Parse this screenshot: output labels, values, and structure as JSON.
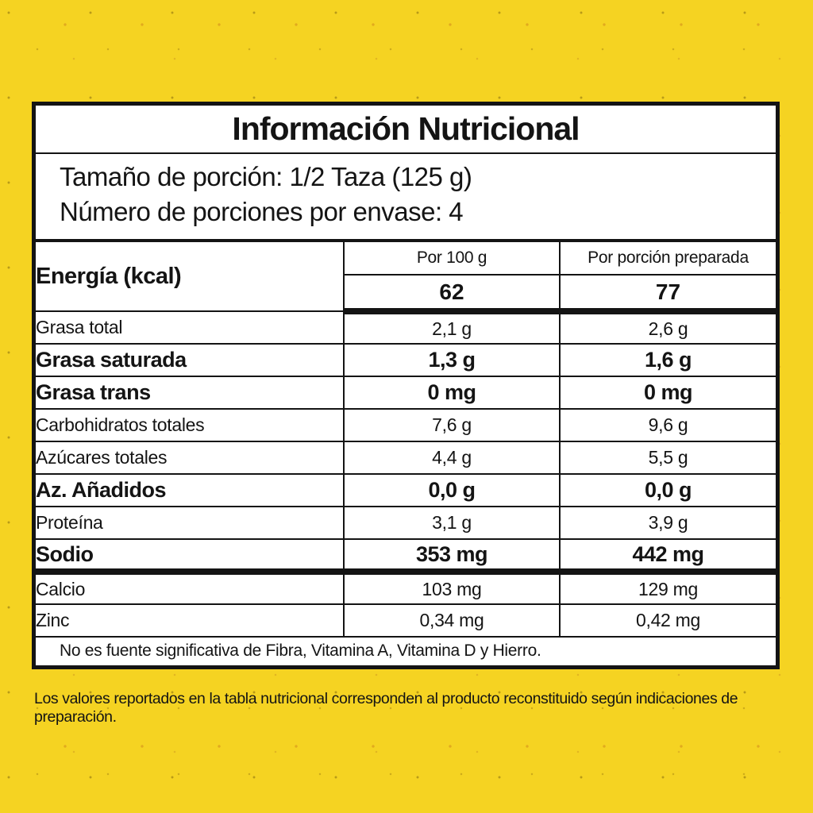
{
  "page": {
    "background_color": "#F5D322",
    "footer_note": "Los valores reportados en la tabla nutricional corresponden al producto reconstituido según indicaciones de preparación."
  },
  "label": {
    "title": "Información Nutricional",
    "serving_size": "Tamaño de porción: 1/2 Taza (125 g)",
    "servings_per_container": "Número de porciones por envase: 4",
    "columns": {
      "per_100": "Por 100 g",
      "per_portion": "Por porción preparada"
    },
    "energy": {
      "name": "Energía (kcal)",
      "per_100": "62",
      "per_portion": "77"
    },
    "rows": [
      {
        "name": "Grasa total",
        "per_100": "2,1 g",
        "per_portion": "2,6 g"
      },
      {
        "name": "Grasa saturada",
        "per_100": "1,3 g",
        "per_portion": "1,6 g"
      },
      {
        "name": "Grasa trans",
        "per_100": "0 mg",
        "per_portion": "0 mg"
      },
      {
        "name": "Carbohidratos totales",
        "per_100": "7,6 g",
        "per_portion": "9,6 g"
      },
      {
        "name": "Azúcares totales",
        "per_100": "4,4 g",
        "per_portion": "5,5 g"
      },
      {
        "name": "Az. Añadidos",
        "per_100": "0,0 g",
        "per_portion": "0,0 g"
      },
      {
        "name": "Proteína",
        "per_100": "3,1 g",
        "per_portion": "3,9 g"
      },
      {
        "name": "Sodio",
        "per_100": "353 mg",
        "per_portion": "442 mg"
      },
      {
        "name": "Calcio",
        "per_100": "103 mg",
        "per_portion": "129 mg"
      },
      {
        "name": "Zinc",
        "per_100": "0,34 mg",
        "per_portion": "0,42 mg"
      }
    ],
    "footnote": "No es fuente significativa de Fibra, Vitamina A, Vitamina D y Hierro."
  }
}
